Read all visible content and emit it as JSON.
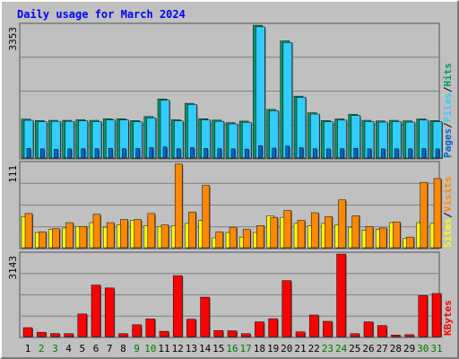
{
  "chart_data": [
    {
      "type": "bar",
      "title": "Daily usage for March 2024",
      "ymax_label": "3353",
      "ylim": [
        0,
        3353
      ],
      "legend": [
        "Pages",
        "Files",
        "Hits"
      ],
      "legend_separators": [
        "/",
        "/"
      ],
      "categories": [
        "1",
        "2",
        "3",
        "4",
        "5",
        "6",
        "7",
        "8",
        "9",
        "10",
        "11",
        "12",
        "13",
        "14",
        "15",
        "16",
        "17",
        "18",
        "19",
        "20",
        "21",
        "22",
        "23",
        "24",
        "25",
        "26",
        "27",
        "28",
        "29",
        "30",
        "31"
      ],
      "series": [
        {
          "name": "Hits",
          "color": "#009966",
          "values": [
            980,
            945,
            950,
            950,
            965,
            950,
            990,
            990,
            945,
            1045,
            1490,
            965,
            1380,
            990,
            955,
            890,
            930,
            3350,
            1225,
            2955,
            1560,
            1140,
            945,
            985,
            1100,
            950,
            935,
            950,
            935,
            985,
            945
          ]
        },
        {
          "name": "Files",
          "color": "#33ccff",
          "values": [
            950,
            915,
            925,
            925,
            935,
            920,
            960,
            960,
            915,
            1015,
            1460,
            935,
            1350,
            960,
            925,
            860,
            900,
            3310,
            1195,
            2915,
            1530,
            1110,
            915,
            955,
            1070,
            920,
            905,
            920,
            905,
            955,
            915
          ]
        },
        {
          "name": "Pages",
          "color": "#0066cc",
          "values": [
            240,
            230,
            220,
            230,
            235,
            235,
            245,
            235,
            240,
            260,
            280,
            230,
            260,
            240,
            235,
            230,
            225,
            310,
            250,
            300,
            260,
            235,
            230,
            235,
            245,
            230,
            230,
            230,
            230,
            235,
            230
          ]
        }
      ]
    },
    {
      "type": "bar",
      "ymax_label": "111",
      "ylim": [
        0,
        111
      ],
      "legend": [
        "Sites",
        "Visits"
      ],
      "legend_separator": "/",
      "categories": [
        "1",
        "2",
        "3",
        "4",
        "5",
        "6",
        "7",
        "8",
        "9",
        "10",
        "11",
        "12",
        "13",
        "14",
        "15",
        "16",
        "17",
        "18",
        "19",
        "20",
        "21",
        "22",
        "23",
        "24",
        "25",
        "26",
        "27",
        "28",
        "29",
        "30",
        "31"
      ],
      "series": [
        {
          "name": "Sites",
          "color": "#ffff00",
          "values": [
            41,
            20,
            24,
            26,
            28,
            33,
            27,
            30,
            36,
            29,
            28,
            29,
            32,
            36,
            13,
            20,
            14,
            20,
            42,
            40,
            32,
            29,
            32,
            30,
            27,
            23,
            24,
            33,
            12,
            33,
            32
          ]
        },
        {
          "name": "Visits",
          "color": "#ff8800",
          "values": [
            45,
            21,
            25,
            33,
            28,
            44,
            33,
            37,
            37,
            45,
            30,
            110,
            47,
            82,
            21,
            27,
            24,
            29,
            40,
            49,
            36,
            46,
            41,
            63,
            42,
            28,
            26,
            34,
            14,
            86,
            91
          ]
        }
      ]
    },
    {
      "type": "bar",
      "ymax_label": "3143",
      "ylim": [
        0,
        3143
      ],
      "legend": [
        "KBytes"
      ],
      "categories": [
        "1",
        "2",
        "3",
        "4",
        "5",
        "6",
        "7",
        "8",
        "9",
        "10",
        "11",
        "12",
        "13",
        "14",
        "15",
        "16",
        "17",
        "18",
        "19",
        "20",
        "21",
        "22",
        "23",
        "24",
        "25",
        "26",
        "27",
        "28",
        "29",
        "30",
        "31"
      ],
      "series": [
        {
          "name": "KBytes",
          "color": "#ff0000",
          "values": [
            340,
            165,
            115,
            110,
            860,
            1960,
            1850,
            110,
            450,
            670,
            200,
            2320,
            660,
            1500,
            230,
            220,
            110,
            560,
            680,
            2130,
            180,
            820,
            580,
            3140,
            110,
            560,
            420,
            60,
            70,
            1560,
            1640
          ]
        }
      ],
      "weekend_days": [
        "2",
        "3",
        "9",
        "10",
        "16",
        "17",
        "23",
        "24",
        "30",
        "31"
      ]
    }
  ],
  "colors": {
    "background": "#c0c0c0",
    "grid": "#808080",
    "title": "#0000ff",
    "axis_text": "#000000",
    "weekday_label": "#000000",
    "weekend_label": "#007700"
  }
}
